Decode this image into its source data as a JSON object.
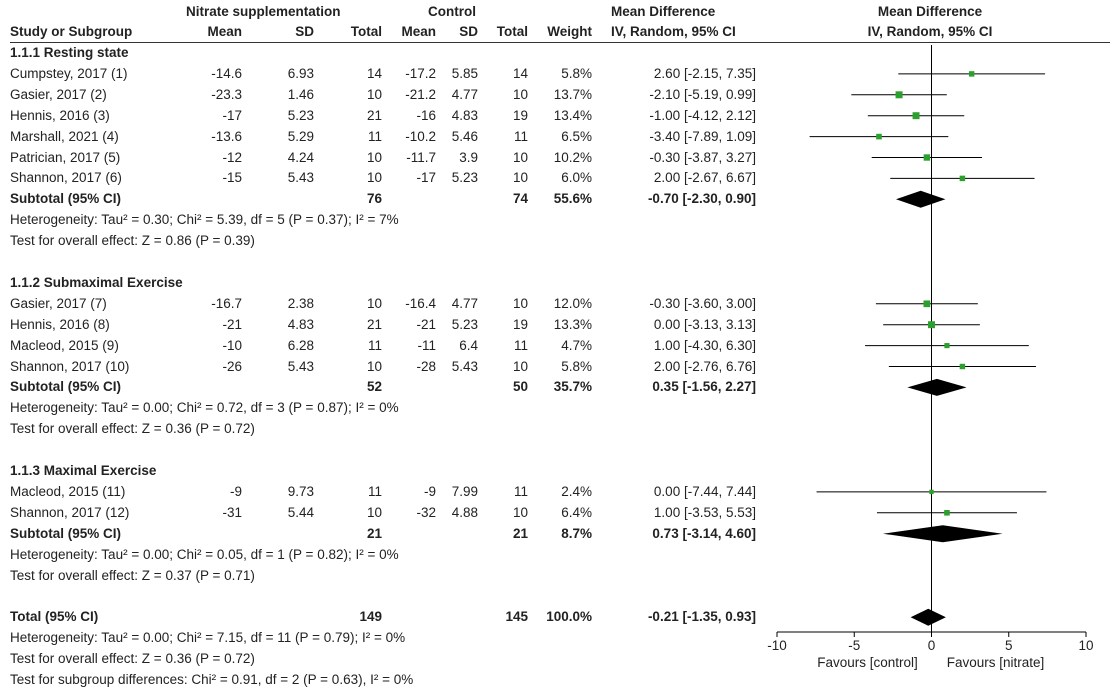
{
  "headers": {
    "group_nitrate": "Nitrate supplementation",
    "group_control": "Control",
    "study": "Study or Subgroup",
    "mean": "Mean",
    "sd": "SD",
    "total": "Total",
    "weight": "Weight",
    "md_title": "Mean Difference",
    "md_method": "IV, Random, 95% CI"
  },
  "rows": [
    {
      "kind": "group",
      "label": "1.1.1 Resting state"
    },
    {
      "kind": "study",
      "name": "Cumpstey, 2017 (1)",
      "e_mean": "-14.6",
      "e_sd": "6.93",
      "e_total": "14",
      "c_mean": "-17.2",
      "c_sd": "5.85",
      "c_total": "14",
      "weight": "5.8%",
      "ci": "2.60 [-2.15, 7.35]"
    },
    {
      "kind": "study",
      "name": "Gasier, 2017 (2)",
      "e_mean": "-23.3",
      "e_sd": "1.46",
      "e_total": "10",
      "c_mean": "-21.2",
      "c_sd": "4.77",
      "c_total": "10",
      "weight": "13.7%",
      "ci": "-2.10 [-5.19, 0.99]"
    },
    {
      "kind": "study",
      "name": "Hennis, 2016 (3)",
      "e_mean": "-17",
      "e_sd": "5.23",
      "e_total": "21",
      "c_mean": "-16",
      "c_sd": "4.83",
      "c_total": "19",
      "weight": "13.4%",
      "ci": "-1.00 [-4.12, 2.12]"
    },
    {
      "kind": "study",
      "name": "Marshall, 2021 (4)",
      "e_mean": "-13.6",
      "e_sd": "5.29",
      "e_total": "11",
      "c_mean": "-10.2",
      "c_sd": "5.46",
      "c_total": "11",
      "weight": "6.5%",
      "ci": "-3.40 [-7.89, 1.09]"
    },
    {
      "kind": "study",
      "name": "Patrician, 2017 (5)",
      "e_mean": "-12",
      "e_sd": "4.24",
      "e_total": "10",
      "c_mean": "-11.7",
      "c_sd": "3.9",
      "c_total": "10",
      "weight": "10.2%",
      "ci": "-0.30 [-3.87, 3.27]"
    },
    {
      "kind": "study",
      "name": "Shannon, 2017 (6)",
      "e_mean": "-15",
      "e_sd": "5.43",
      "e_total": "10",
      "c_mean": "-17",
      "c_sd": "5.23",
      "c_total": "10",
      "weight": "6.0%",
      "ci": "2.00 [-2.67, 6.67]"
    },
    {
      "kind": "subtotal",
      "name": "Subtotal (95% CI)",
      "e_total": "76",
      "c_total": "74",
      "weight": "55.6%",
      "ci": "-0.70 [-2.30, 0.90]"
    },
    {
      "kind": "note",
      "text": "Heterogeneity: Tau² = 0.30; Chi² = 5.39, df = 5 (P = 0.37); I² = 7%"
    },
    {
      "kind": "note",
      "text": "Test for overall effect: Z = 0.86 (P = 0.39)"
    },
    {
      "kind": "blank"
    },
    {
      "kind": "group",
      "label": "1.1.2 Submaximal Exercise"
    },
    {
      "kind": "study",
      "name": "Gasier, 2017 (7)",
      "e_mean": "-16.7",
      "e_sd": "2.38",
      "e_total": "10",
      "c_mean": "-16.4",
      "c_sd": "4.77",
      "c_total": "10",
      "weight": "12.0%",
      "ci": "-0.30 [-3.60, 3.00]"
    },
    {
      "kind": "study",
      "name": "Hennis, 2016 (8)",
      "e_mean": "-21",
      "e_sd": "4.83",
      "e_total": "21",
      "c_mean": "-21",
      "c_sd": "5.23",
      "c_total": "19",
      "weight": "13.3%",
      "ci": "0.00 [-3.13, 3.13]"
    },
    {
      "kind": "study",
      "name": "Macleod, 2015 (9)",
      "e_mean": "-10",
      "e_sd": "6.28",
      "e_total": "11",
      "c_mean": "-11",
      "c_sd": "6.4",
      "c_total": "11",
      "weight": "4.7%",
      "ci": "1.00 [-4.30, 6.30]"
    },
    {
      "kind": "study",
      "name": "Shannon, 2017 (10)",
      "e_mean": "-26",
      "e_sd": "5.43",
      "e_total": "10",
      "c_mean": "-28",
      "c_sd": "5.43",
      "c_total": "10",
      "weight": "5.8%",
      "ci": "2.00 [-2.76, 6.76]"
    },
    {
      "kind": "subtotal",
      "name": "Subtotal (95% CI)",
      "e_total": "52",
      "c_total": "50",
      "weight": "35.7%",
      "ci": "0.35 [-1.56, 2.27]"
    },
    {
      "kind": "note",
      "text": "Heterogeneity: Tau² = 0.00; Chi² = 0.72, df = 3 (P = 0.87); I² = 0%"
    },
    {
      "kind": "note",
      "text": "Test for overall effect: Z = 0.36 (P = 0.72)"
    },
    {
      "kind": "blank"
    },
    {
      "kind": "group",
      "label": "1.1.3 Maximal Exercise"
    },
    {
      "kind": "study",
      "name": "Macleod, 2015 (11)",
      "e_mean": "-9",
      "e_sd": "9.73",
      "e_total": "11",
      "c_mean": "-9",
      "c_sd": "7.99",
      "c_total": "11",
      "weight": "2.4%",
      "ci": "0.00 [-7.44, 7.44]"
    },
    {
      "kind": "study",
      "name": "Shannon, 2017 (12)",
      "e_mean": "-31",
      "e_sd": "5.44",
      "e_total": "10",
      "c_mean": "-32",
      "c_sd": "4.88",
      "c_total": "10",
      "weight": "6.4%",
      "ci": "1.00 [-3.53, 5.53]"
    },
    {
      "kind": "subtotal",
      "name": "Subtotal (95% CI)",
      "e_total": "21",
      "c_total": "21",
      "weight": "8.7%",
      "ci": "0.73 [-3.14, 4.60]"
    },
    {
      "kind": "note",
      "text": "Heterogeneity: Tau² = 0.00; Chi² = 0.05, df = 1 (P = 0.82); I² = 0%"
    },
    {
      "kind": "note",
      "text": "Test for overall effect: Z = 0.37 (P = 0.71)"
    },
    {
      "kind": "blank"
    },
    {
      "kind": "total",
      "name": "Total (95% CI)",
      "e_total": "149",
      "c_total": "145",
      "weight": "100.0%",
      "ci": "-0.21 [-1.35, 0.93]"
    },
    {
      "kind": "note",
      "text": "Heterogeneity: Tau² = 0.00; Chi² = 7.15, df = 11 (P = 0.79); I² = 0%"
    },
    {
      "kind": "note",
      "text": "Test for overall effect: Z = 0.36 (P = 0.72)"
    },
    {
      "kind": "note",
      "text": "Test for subgroup differences: Chi² = 0.91, df = 2 (P = 0.63), I² = 0%"
    }
  ],
  "chart_data": {
    "type": "forest",
    "title": "Mean Difference, IV, Random, 95% CI",
    "xlim": [
      -10,
      10
    ],
    "xticks": [
      -10,
      -5,
      0,
      5,
      10
    ],
    "xtick_labels": [
      "-10",
      "-5",
      "0",
      "5",
      "10"
    ],
    "label_left": "Favours [control]",
    "label_right": "Favours [nitrate]",
    "marker_color": "#2ca02c",
    "diamond_color": "#000000",
    "studies": [
      {
        "name": "Cumpstey, 2017 (1)",
        "md": 2.6,
        "lo": -2.15,
        "hi": 7.35,
        "weight": 5.8
      },
      {
        "name": "Gasier, 2017 (2)",
        "md": -2.1,
        "lo": -5.19,
        "hi": 0.99,
        "weight": 13.7
      },
      {
        "name": "Hennis, 2016 (3)",
        "md": -1.0,
        "lo": -4.12,
        "hi": 2.12,
        "weight": 13.4
      },
      {
        "name": "Marshall, 2021 (4)",
        "md": -3.4,
        "lo": -7.89,
        "hi": 1.09,
        "weight": 6.5
      },
      {
        "name": "Patrician, 2017 (5)",
        "md": -0.3,
        "lo": -3.87,
        "hi": 3.27,
        "weight": 10.2
      },
      {
        "name": "Shannon, 2017 (6)",
        "md": 2.0,
        "lo": -2.67,
        "hi": 6.67,
        "weight": 6.0
      },
      {
        "name": "Subtotal 1.1.1",
        "md": -0.7,
        "lo": -2.3,
        "hi": 0.9,
        "diamond": true
      },
      {
        "name": "Gasier, 2017 (7)",
        "md": -0.3,
        "lo": -3.6,
        "hi": 3.0,
        "weight": 12.0
      },
      {
        "name": "Hennis, 2016 (8)",
        "md": 0.0,
        "lo": -3.13,
        "hi": 3.13,
        "weight": 13.3
      },
      {
        "name": "Macleod, 2015 (9)",
        "md": 1.0,
        "lo": -4.3,
        "hi": 6.3,
        "weight": 4.7
      },
      {
        "name": "Shannon, 2017 (10)",
        "md": 2.0,
        "lo": -2.76,
        "hi": 6.76,
        "weight": 5.8
      },
      {
        "name": "Subtotal 1.1.2",
        "md": 0.35,
        "lo": -1.56,
        "hi": 2.27,
        "diamond": true
      },
      {
        "name": "Macleod, 2015 (11)",
        "md": 0.0,
        "lo": -7.44,
        "hi": 7.44,
        "weight": 2.4
      },
      {
        "name": "Shannon, 2017 (12)",
        "md": 1.0,
        "lo": -3.53,
        "hi": 5.53,
        "weight": 6.4
      },
      {
        "name": "Subtotal 1.1.3",
        "md": 0.73,
        "lo": -3.14,
        "hi": 4.6,
        "diamond": true
      },
      {
        "name": "Total",
        "md": -0.21,
        "lo": -1.35,
        "hi": 0.93,
        "diamond": true
      }
    ]
  }
}
